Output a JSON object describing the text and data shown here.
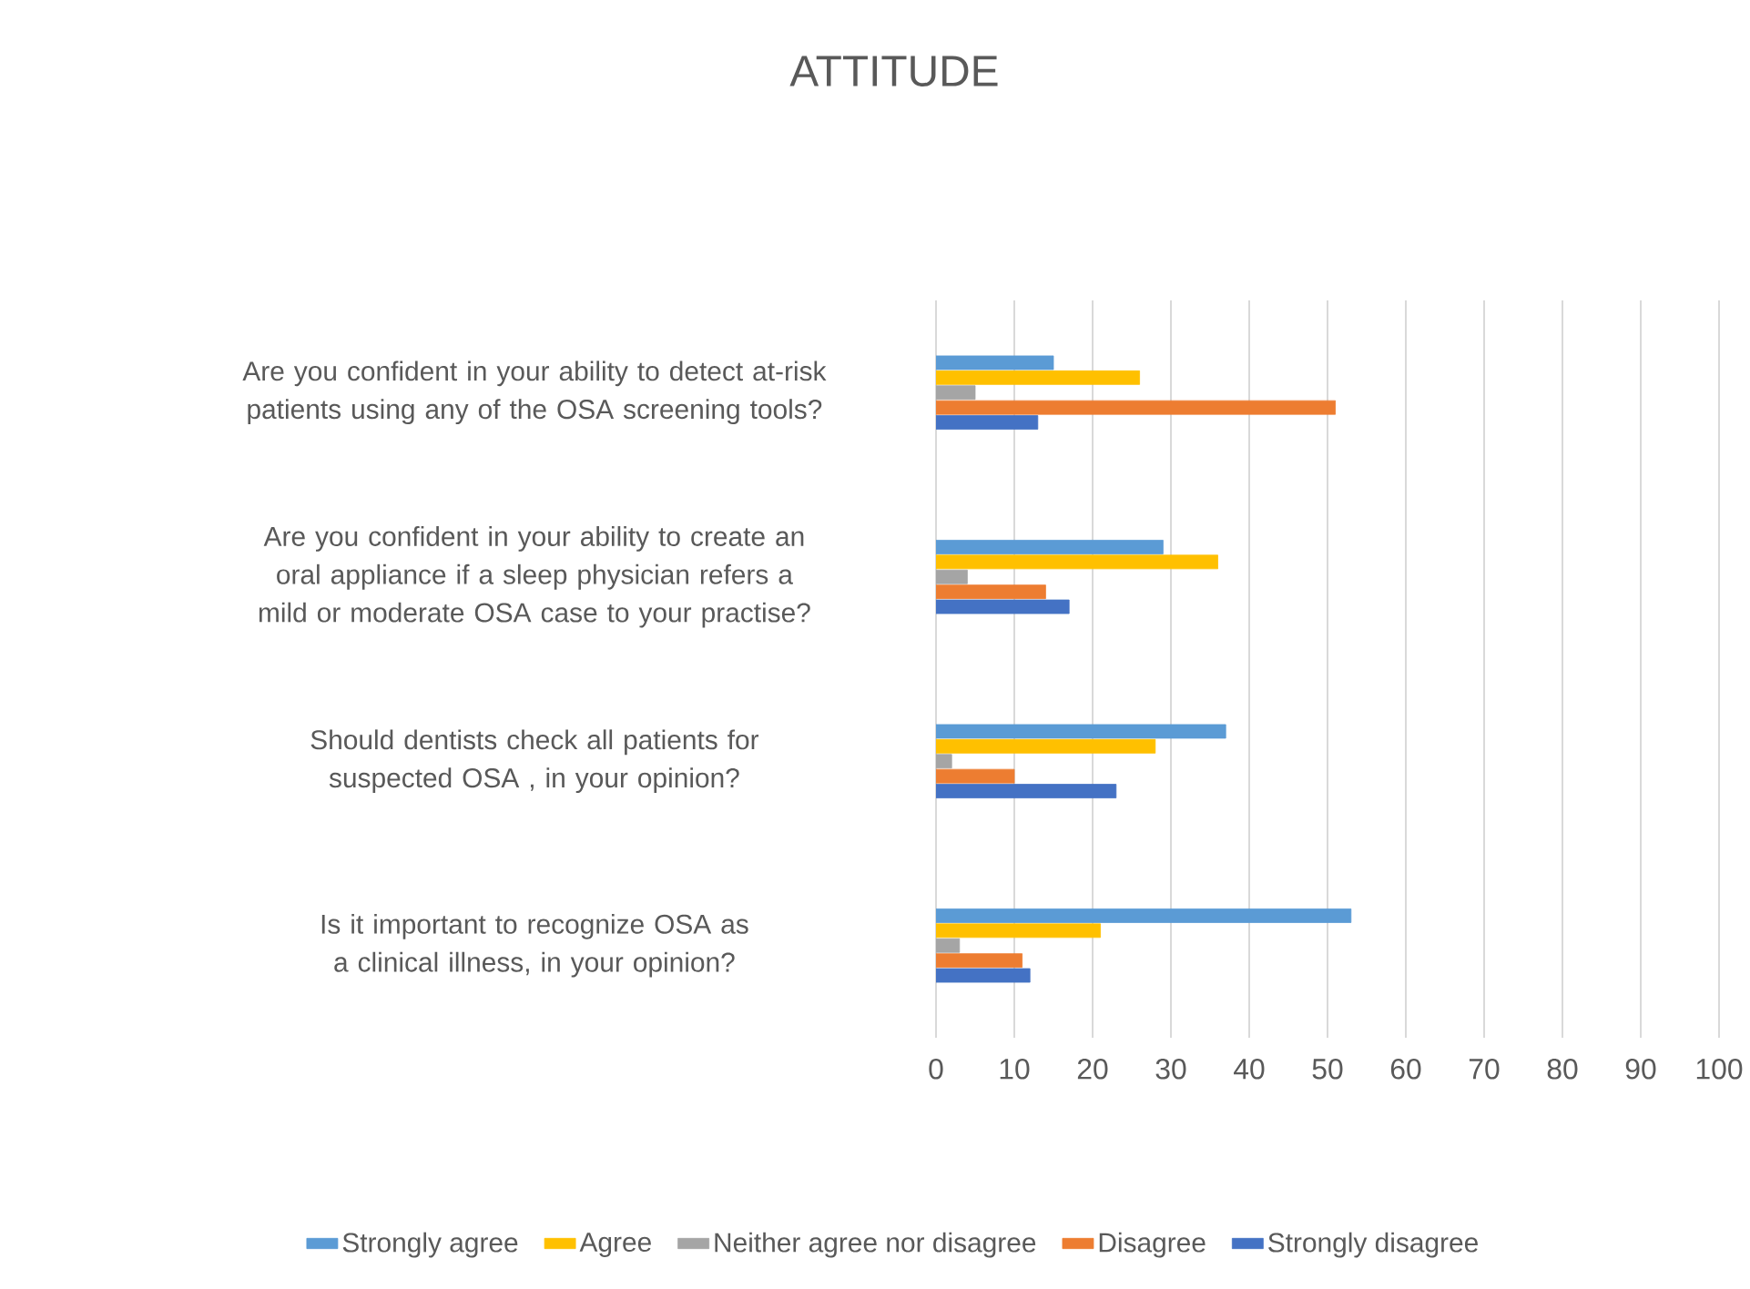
{
  "chart_data": {
    "type": "bar",
    "orientation": "horizontal",
    "title": "ATTITUDE",
    "categories": [
      "Are you confident in your ability to detect at-risk patients using any of the  OSA screening tools?",
      "Are you confident in your ability to create an oral appliance if a sleep physician refers a mild or moderate OSA case to your practise?",
      "Should dentists check all patients for suspected OSA , in your opinion?",
      "Is it important to recognize  OSA as a clinical illness, in your opinion?"
    ],
    "series": [
      {
        "name": "Strongly agree",
        "color": "#5b9bd5",
        "values": [
          15,
          29,
          37,
          53
        ]
      },
      {
        "name": "Agree",
        "color": "#ffc000",
        "values": [
          26,
          36,
          28,
          21
        ]
      },
      {
        "name": "Neither agree nor disagree",
        "color": "#a5a5a5",
        "values": [
          5,
          4,
          2,
          3
        ]
      },
      {
        "name": "Disagree",
        "color": "#ed7d31",
        "values": [
          51,
          14,
          10,
          11
        ]
      },
      {
        "name": "Strongly disagree",
        "color": "#4472c4",
        "values": [
          13,
          17,
          23,
          12
        ]
      }
    ],
    "xlim": [
      0,
      100
    ],
    "xticks": [
      0,
      10,
      20,
      30,
      40,
      50,
      60,
      70,
      80,
      90,
      100
    ],
    "grid": "x",
    "legend": "bottom"
  }
}
